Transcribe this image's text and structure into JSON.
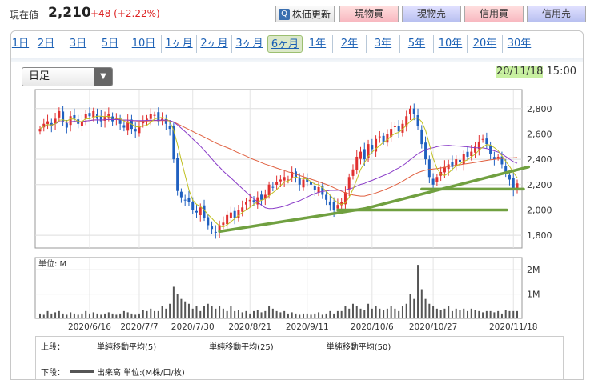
{
  "header": {
    "price_label": "現在値",
    "price_value": "2,210",
    "price_change": "+48 (+2.22%)",
    "refresh_label": "株価更新",
    "buttons": [
      "現物買",
      "現物売",
      "信用買",
      "信用売"
    ]
  },
  "tabs": [
    "1日",
    "2日",
    "3日",
    "5日",
    "10日",
    "1ヶ月",
    "2ヶ月",
    "3ヶ月",
    "6ヶ月",
    "1年",
    "2年",
    "3年",
    "5年",
    "10年",
    "20年",
    "30年"
  ],
  "active_tab": "6ヶ月",
  "period_select": {
    "value": "日足"
  },
  "datetime": {
    "date": "20/11/18",
    "time": "15:00"
  },
  "colors": {
    "up": "#e03030",
    "down": "#2060c0",
    "ma5": "#c0c020",
    "ma25": "#8a3cc8",
    "ma50": "#e06040",
    "annotation": "#70a040"
  },
  "chart_data": {
    "type": "candlestick",
    "price_axis": {
      "ticks": [
        "2,800",
        "2,600",
        "2,400",
        "2,200",
        "2,000",
        "1,800"
      ],
      "range": [
        1700,
        2950
      ]
    },
    "volume_axis": {
      "unit_label": "単位: M",
      "ticks": [
        "2M",
        "1M"
      ]
    },
    "x_labels": [
      "2020/6/16",
      "2020/7/7",
      "2020/7/30",
      "2020/8/21",
      "2020/9/11",
      "2020/10/6",
      "2020/10/27",
      "2020/11/18"
    ],
    "closes": [
      2640,
      2680,
      2700,
      2660,
      2720,
      2780,
      2700,
      2650,
      2740,
      2720,
      2680,
      2700,
      2760,
      2740,
      2780,
      2720,
      2700,
      2740,
      2760,
      2700,
      2720,
      2680,
      2650,
      2700,
      2640,
      2620,
      2660,
      2700,
      2720,
      2760,
      2750,
      2700,
      2720,
      2680,
      2640,
      2400,
      2150,
      2100,
      2080,
      2060,
      2000,
      1980,
      2020,
      1940,
      1880,
      1850,
      1820,
      1880,
      1900,
      1960,
      1980,
      1940,
      2000,
      2020,
      2060,
      2080,
      2060,
      2100,
      2080,
      2120,
      2200,
      2180,
      2220,
      2240,
      2260,
      2240,
      2300,
      2260,
      2200,
      2240,
      2220,
      2200,
      2160,
      2180,
      2120,
      2080,
      2040,
      2000,
      2040,
      2060,
      2140,
      2260,
      2320,
      2420,
      2460,
      2400,
      2520,
      2480,
      2560,
      2580,
      2540,
      2600,
      2640,
      2660,
      2620,
      2680,
      2740,
      2800,
      2760,
      2660,
      2520,
      2400,
      2260,
      2200,
      2260,
      2300,
      2340,
      2360,
      2340,
      2400,
      2380,
      2440,
      2420,
      2460,
      2500,
      2540,
      2560,
      2520,
      2440,
      2400,
      2420,
      2360,
      2300,
      2240,
      2162,
      2210
    ],
    "volumes": [
      0.2,
      0.15,
      0.3,
      0.2,
      0.25,
      0.3,
      0.2,
      0.15,
      0.25,
      0.2,
      0.15,
      0.2,
      0.3,
      0.2,
      0.25,
      0.2,
      0.15,
      0.2,
      0.25,
      0.2,
      0.15,
      0.2,
      0.3,
      0.25,
      0.2,
      0.15,
      0.2,
      0.35,
      0.3,
      0.4,
      0.3,
      0.3,
      0.5,
      0.4,
      0.6,
      1.3,
      1.0,
      0.8,
      0.7,
      0.6,
      0.4,
      0.5,
      0.3,
      0.5,
      0.6,
      0.5,
      0.4,
      0.5,
      0.4,
      0.3,
      0.5,
      0.3,
      0.35,
      0.25,
      0.3,
      0.2,
      0.3,
      0.35,
      0.25,
      0.3,
      0.5,
      0.4,
      0.3,
      0.25,
      0.3,
      0.2,
      0.25,
      0.2,
      0.15,
      0.2,
      0.2,
      0.15,
      0.2,
      0.25,
      0.15,
      0.2,
      0.3,
      0.2,
      0.3,
      0.3,
      0.5,
      0.4,
      0.6,
      0.5,
      0.4,
      0.35,
      0.6,
      0.4,
      0.5,
      0.4,
      0.35,
      0.4,
      0.5,
      0.4,
      0.3,
      0.5,
      0.6,
      1.0,
      0.8,
      2.2,
      1.2,
      0.8,
      0.6,
      0.5,
      0.4,
      0.35,
      0.4,
      0.5,
      0.3,
      0.4,
      0.35,
      0.4,
      0.3,
      0.4,
      0.35,
      0.3,
      0.25,
      0.3,
      0.3,
      0.25,
      0.3,
      0.2,
      0.35,
      0.3,
      0.3,
      0.3
    ]
  },
  "legend": {
    "upper_label": "上段：",
    "lower_label": "下段：",
    "items": [
      {
        "label": "単純移動平均(5)",
        "color": "#c0c020"
      },
      {
        "label": "単純移動平均(25)",
        "color": "#8a3cc8"
      },
      {
        "label": "単純移動平均(50)",
        "color": "#e06040"
      }
    ],
    "volume_item": "出来高 単位:(M株/口/枚)"
  }
}
